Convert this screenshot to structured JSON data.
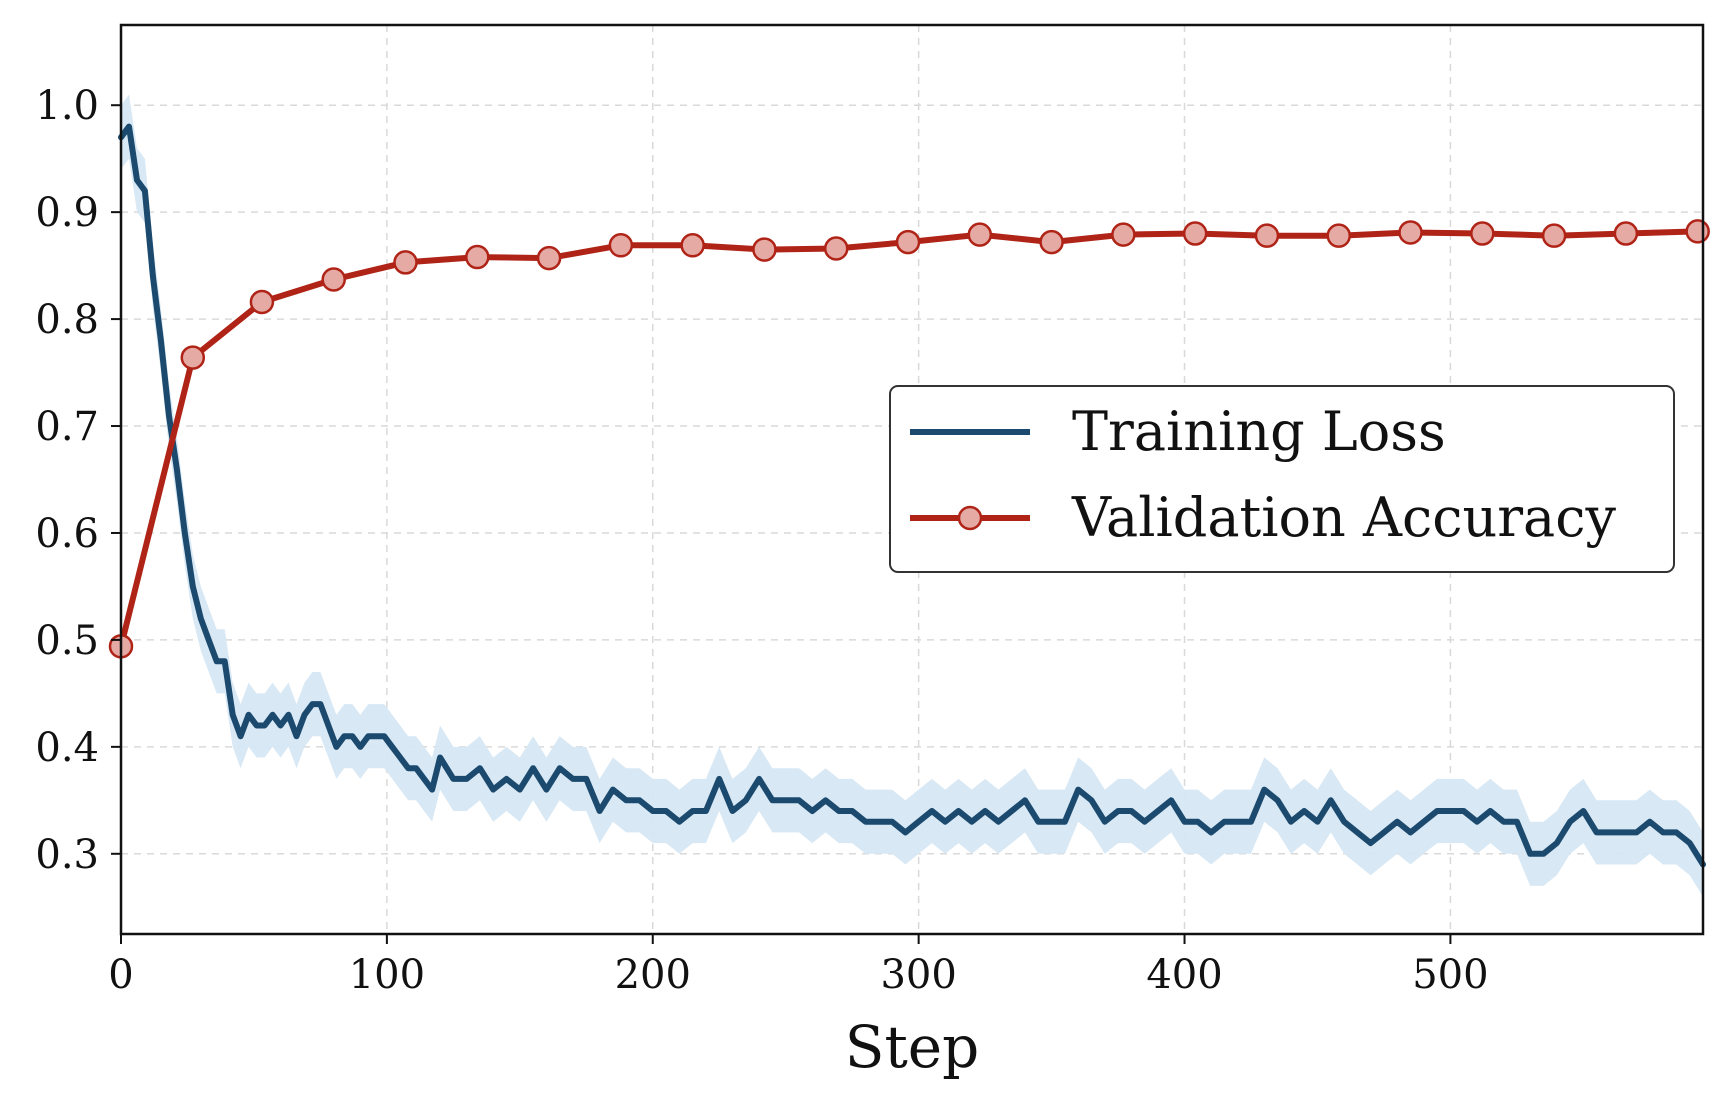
{
  "chart_data": {
    "type": "line",
    "title": "",
    "xlabel": "Step",
    "ylabel": "",
    "xlim": [
      0,
      595
    ],
    "ylim": [
      0.225,
      1.075
    ],
    "grid": true,
    "grid_style": "dashed",
    "legend_position": "center-right",
    "x_ticks": [
      0,
      100,
      200,
      300,
      400,
      500
    ],
    "x_tick_labels": [
      "0",
      "100",
      "200",
      "300",
      "400",
      "500"
    ],
    "y_ticks": [
      0.3,
      0.4,
      0.5,
      0.6,
      0.7,
      0.8,
      0.9,
      1.0
    ],
    "y_tick_labels": [
      "0.3",
      "0.4",
      "0.5",
      "0.6",
      "0.7",
      "0.8",
      "0.9",
      "1.0"
    ],
    "colors": {
      "loss_line": "#1c4a6e",
      "loss_band": "#d6e7f3",
      "accuracy_line": "#b02418",
      "accuracy_marker_fill": "#e6aaa4",
      "grid": "#d9d9d9",
      "axes": "#111111",
      "legend_border": "#333333"
    },
    "series": [
      {
        "name": "Training Loss",
        "style": "line-with-band",
        "band_halfwidth": 0.03,
        "x": [
          0,
          3,
          6,
          9,
          12,
          15,
          18,
          21,
          24,
          27,
          30,
          33,
          36,
          39,
          42,
          45,
          48,
          51,
          54,
          57,
          60,
          63,
          66,
          69,
          72,
          75,
          78,
          81,
          84,
          87,
          90,
          93,
          96,
          99,
          102,
          105,
          108,
          111,
          114,
          117,
          120,
          125,
          130,
          135,
          140,
          145,
          150,
          155,
          160,
          165,
          170,
          175,
          180,
          185,
          190,
          195,
          200,
          205,
          210,
          215,
          220,
          225,
          230,
          235,
          240,
          245,
          250,
          255,
          260,
          265,
          270,
          275,
          280,
          285,
          290,
          295,
          300,
          305,
          310,
          315,
          320,
          325,
          330,
          335,
          340,
          345,
          350,
          355,
          360,
          365,
          370,
          375,
          380,
          385,
          390,
          395,
          400,
          405,
          410,
          415,
          420,
          425,
          430,
          435,
          440,
          445,
          450,
          455,
          460,
          465,
          470,
          475,
          480,
          485,
          490,
          495,
          500,
          505,
          510,
          515,
          520,
          525,
          530,
          535,
          540,
          545,
          550,
          555,
          560,
          565,
          570,
          575,
          580,
          585,
          590,
          595
        ],
        "y": [
          0.97,
          0.98,
          0.93,
          0.92,
          0.84,
          0.78,
          0.71,
          0.66,
          0.6,
          0.55,
          0.52,
          0.5,
          0.48,
          0.48,
          0.43,
          0.41,
          0.43,
          0.42,
          0.42,
          0.43,
          0.42,
          0.43,
          0.41,
          0.43,
          0.44,
          0.44,
          0.42,
          0.4,
          0.41,
          0.41,
          0.4,
          0.41,
          0.41,
          0.41,
          0.4,
          0.39,
          0.38,
          0.38,
          0.37,
          0.36,
          0.39,
          0.37,
          0.37,
          0.38,
          0.36,
          0.37,
          0.36,
          0.38,
          0.36,
          0.38,
          0.37,
          0.37,
          0.34,
          0.36,
          0.35,
          0.35,
          0.34,
          0.34,
          0.33,
          0.34,
          0.34,
          0.37,
          0.34,
          0.35,
          0.37,
          0.35,
          0.35,
          0.35,
          0.34,
          0.35,
          0.34,
          0.34,
          0.33,
          0.33,
          0.33,
          0.32,
          0.33,
          0.34,
          0.33,
          0.34,
          0.33,
          0.34,
          0.33,
          0.34,
          0.35,
          0.33,
          0.33,
          0.33,
          0.36,
          0.35,
          0.33,
          0.34,
          0.34,
          0.33,
          0.34,
          0.35,
          0.33,
          0.33,
          0.32,
          0.33,
          0.33,
          0.33,
          0.36,
          0.35,
          0.33,
          0.34,
          0.33,
          0.35,
          0.33,
          0.32,
          0.31,
          0.32,
          0.33,
          0.32,
          0.33,
          0.34,
          0.34,
          0.34,
          0.33,
          0.34,
          0.33,
          0.33,
          0.3,
          0.3,
          0.31,
          0.33,
          0.34,
          0.32,
          0.32,
          0.32,
          0.32,
          0.33,
          0.32,
          0.32,
          0.31,
          0.29
        ]
      },
      {
        "name": "Validation Accuracy",
        "style": "line-with-markers",
        "marker": "circle",
        "x": [
          0,
          27,
          53,
          80,
          107,
          134,
          161,
          188,
          215,
          242,
          269,
          296,
          323,
          350,
          377,
          404,
          431,
          458,
          485,
          512,
          539,
          566,
          593
        ],
        "y": [
          0.494,
          0.764,
          0.816,
          0.837,
          0.853,
          0.858,
          0.857,
          0.869,
          0.869,
          0.865,
          0.866,
          0.872,
          0.879,
          0.872,
          0.879,
          0.88,
          0.878,
          0.878,
          0.881,
          0.88,
          0.878,
          0.88,
          0.882
        ]
      }
    ],
    "legend": [
      {
        "label": "Training Loss",
        "series": 0
      },
      {
        "label": "Validation Accuracy",
        "series": 1
      }
    ]
  }
}
